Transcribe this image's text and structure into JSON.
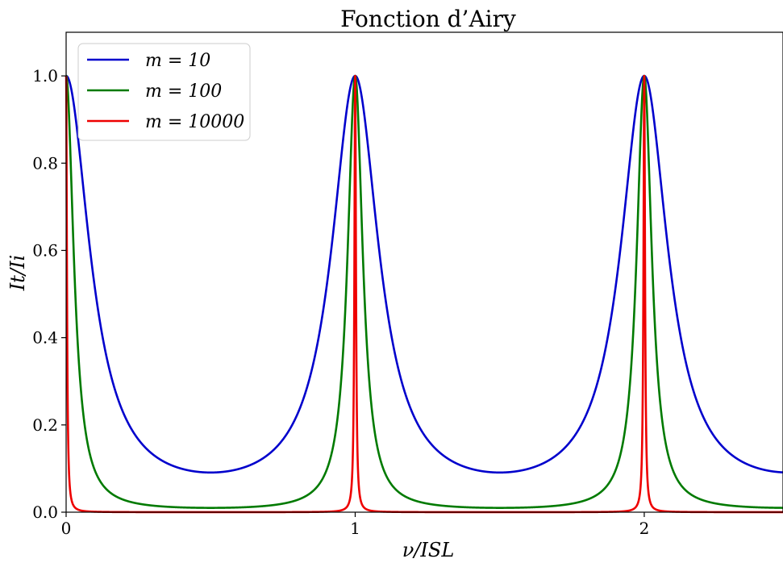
{
  "chart_data": {
    "type": "line",
    "title": "Fonction d’Airy",
    "xlabel": "ν/ISL",
    "ylabel": "It/Ii",
    "xlim": [
      0,
      2.48
    ],
    "ylim": [
      0,
      1.1
    ],
    "xticks": [
      0,
      1,
      2
    ],
    "yticks": [
      0.0,
      0.2,
      0.4,
      0.6,
      0.8,
      1.0
    ],
    "xtick_labels": [
      "0",
      "1",
      "2"
    ],
    "ytick_labels": [
      "0.0",
      "0.2",
      "0.4",
      "0.6",
      "0.8",
      "1.0"
    ],
    "grid": false,
    "legend_position": "top-left",
    "series": [
      {
        "name": "m = 10",
        "m": 10,
        "color": "#0000cc"
      },
      {
        "name": "m = 100",
        "m": 100,
        "color": "#007a00"
      },
      {
        "name": "m = 10000",
        "m": 10000,
        "color": "#ee0000"
      }
    ]
  }
}
